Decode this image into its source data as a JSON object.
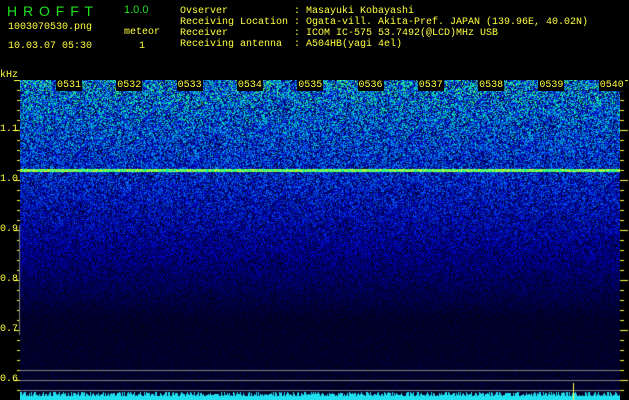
{
  "app": {
    "name": "H R O F F T",
    "version": "1.0.0"
  },
  "file": {
    "name": "1003070530.png",
    "datetime": "10.03.07 05:30",
    "counter_label": "meteor",
    "counter_value": "1"
  },
  "info": [
    {
      "label": "Ovserver",
      "value": "Masayuki Kobayashi"
    },
    {
      "label": "Receiving Location",
      "value": "Ogata-vill. Akita-Pref. JAPAN (139.96E, 40.02N)"
    },
    {
      "label": "Receiver",
      "value": "ICOM IC-575 53.7492(@LCD)MHz USB"
    },
    {
      "label": "Receiving antenna",
      "value": "A504HB(yagi 4el)"
    }
  ],
  "spectrogram": {
    "unit": "kHz",
    "time_labels": [
      "0531",
      "0532",
      "0533",
      "0534",
      "0535",
      "0536",
      "0537",
      "0538",
      "0539",
      "0540"
    ],
    "freq_labels": [
      "1.1",
      "1.0",
      "0.9",
      "0.8",
      "0.7",
      "0.6"
    ],
    "freq_range_khz": [
      0.56,
      1.2
    ],
    "carrier_khz": 1.02,
    "colors": {
      "text": "#ffff40",
      "title": "#20e020",
      "low": "#000010",
      "mid": "#1030e0",
      "high": "#20e0a0",
      "baseline": "#20e0f0"
    }
  }
}
